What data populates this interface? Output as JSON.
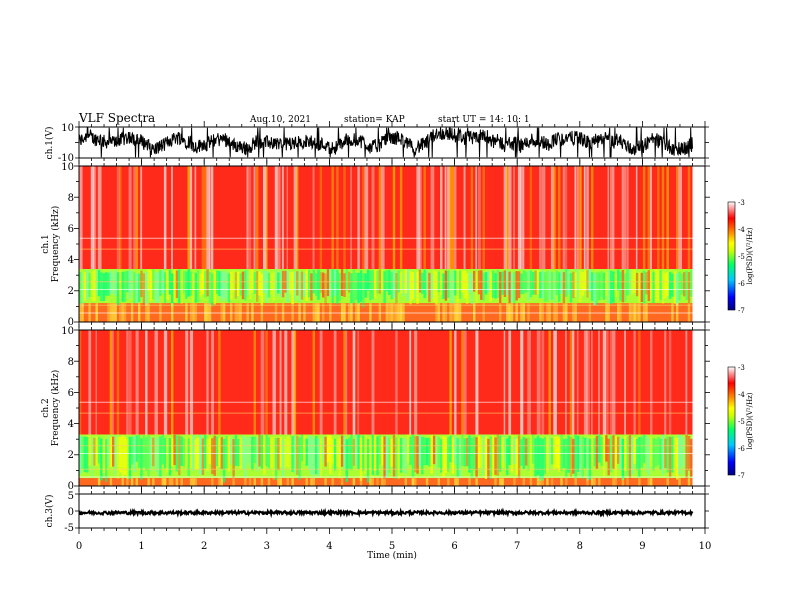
{
  "header": {
    "title": "VLF Spectra",
    "date": "Aug.10, 2021",
    "station": "station= KAP",
    "start": "start  UT  =   14: 10: 1"
  },
  "chart_data": [
    {
      "type": "line",
      "name": "ch1-waveform",
      "ylabel": "ch.1(V)",
      "ylim": [
        -10,
        10
      ],
      "ytick_labels": [
        "10",
        "-10"
      ],
      "xlim": [
        0,
        10
      ],
      "data_end_min": 9.8
    },
    {
      "type": "heatmap",
      "name": "ch1-spectrogram",
      "ylabel_line1": "ch.1",
      "ylabel_line2": "Frequency  (kHz)",
      "ylim": [
        0,
        10
      ],
      "ytick_labels": [
        "0",
        "2",
        "4",
        "6",
        "8",
        "10"
      ],
      "xlim": [
        0,
        10
      ],
      "data_end_min": 9.8,
      "high_band_khz": [
        3.5,
        10
      ],
      "mid_band_khz": [
        1.2,
        3.4
      ],
      "colorbar": {
        "label": "log(PSD)(V²/Hz)",
        "ticks": [
          "-3",
          "-4",
          "-5",
          "-6",
          "-7"
        ],
        "range": [
          -7,
          -3
        ],
        "colors": [
          "#000080",
          "#0000ff",
          "#00c8ff",
          "#00ff66",
          "#ccff00",
          "#ffff00",
          "#ff8800",
          "#ff0000",
          "#ffffff"
        ]
      }
    },
    {
      "type": "heatmap",
      "name": "ch2-spectrogram",
      "ylabel_line1": "ch.2",
      "ylabel_line2": "Frequency  (kHz)",
      "ylim": [
        0,
        10
      ],
      "ytick_labels": [
        "0",
        "2",
        "4",
        "6",
        "8",
        "10"
      ],
      "xlim": [
        0,
        10
      ],
      "data_end_min": 9.8,
      "high_band_khz": [
        3.6,
        10
      ],
      "mid_band_khz": [
        0.5,
        3.3
      ],
      "colorbar": {
        "label": "log(PSD)(V²/Hz)",
        "ticks": [
          "-3",
          "-4",
          "-5",
          "-6",
          "-7"
        ],
        "range": [
          -7,
          -3
        ],
        "colors": [
          "#000080",
          "#0000ff",
          "#00c8ff",
          "#00ff66",
          "#ccff00",
          "#ffff00",
          "#ff8800",
          "#ff0000",
          "#ffffff"
        ]
      }
    },
    {
      "type": "line",
      "name": "ch3-waveform",
      "ylabel": "ch.3(V)",
      "ylim": [
        -5,
        5
      ],
      "ytick_labels": [
        "5",
        "0",
        "-5"
      ],
      "xlim": [
        0,
        10
      ],
      "data_end_min": 9.8,
      "level_v": 0
    }
  ],
  "xaxis": {
    "label": "Time  (min)",
    "ticks": [
      "0",
      "1",
      "2",
      "3",
      "4",
      "5",
      "6",
      "7",
      "8",
      "9",
      "10"
    ]
  }
}
